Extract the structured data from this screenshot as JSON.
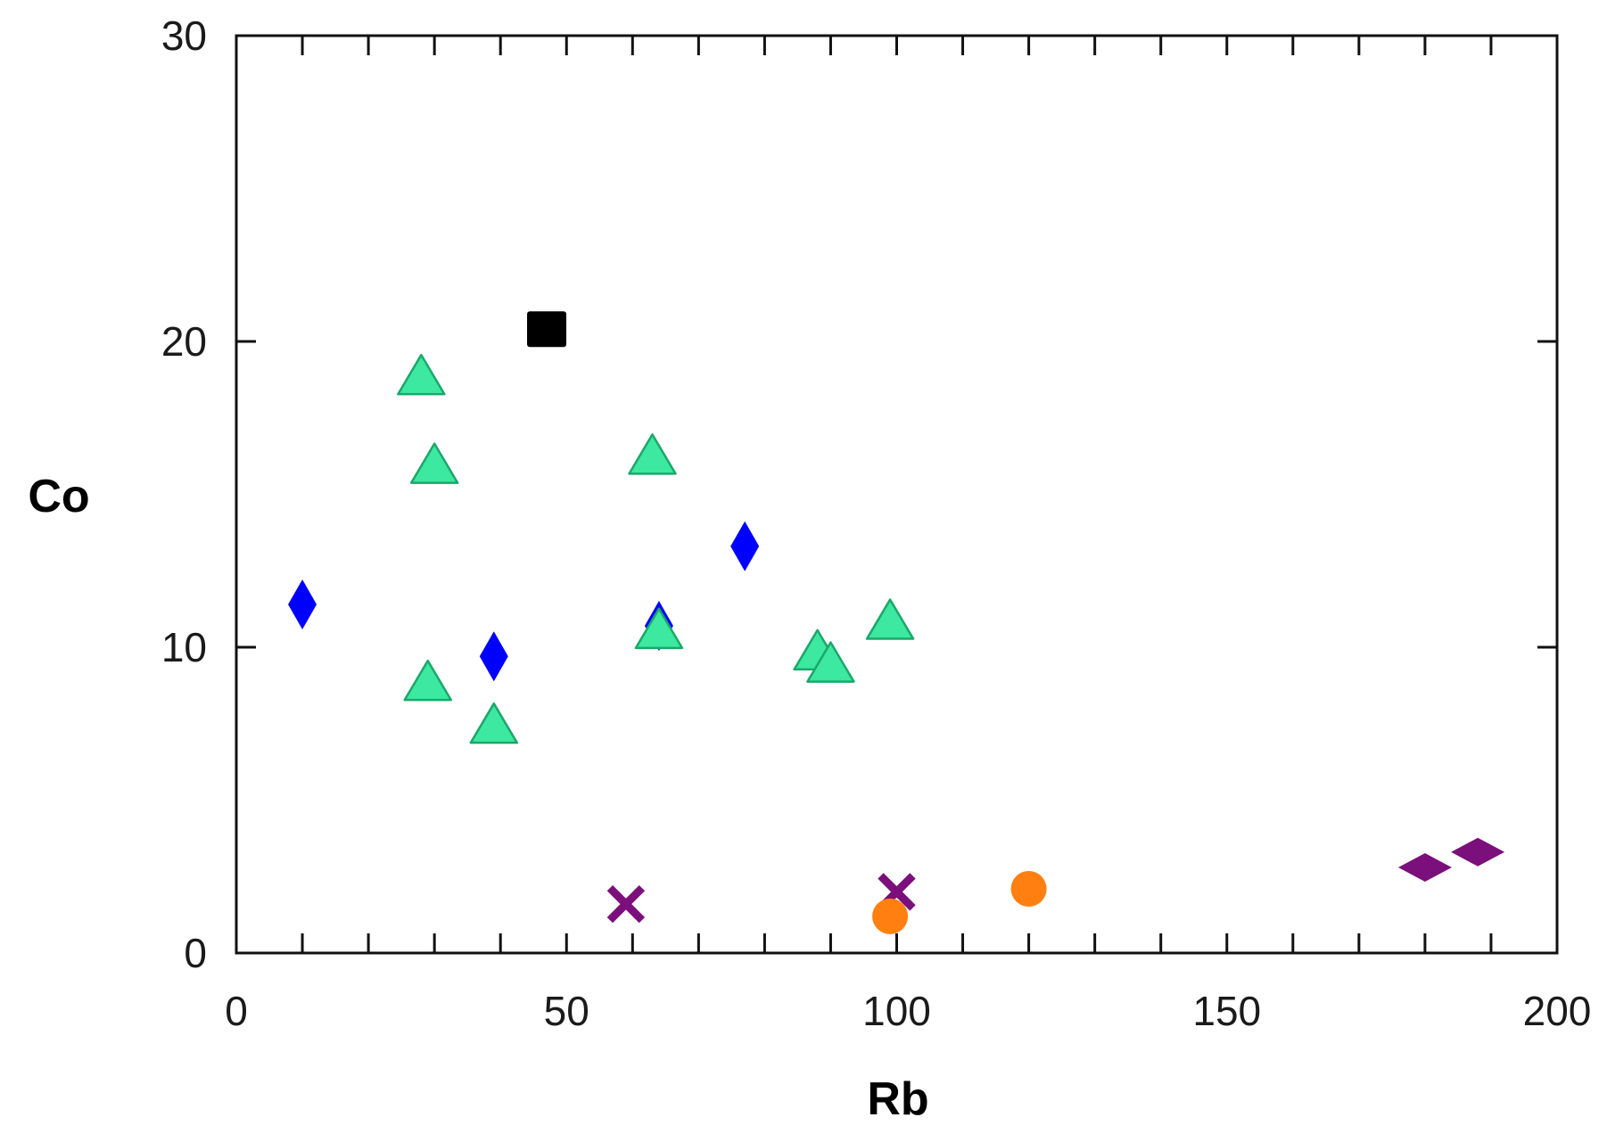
{
  "chart_data": {
    "type": "scatter",
    "title": "",
    "xlabel": "Rb",
    "ylabel": "Co",
    "xlim": [
      0,
      200
    ],
    "ylim": [
      0,
      30
    ],
    "xticks": [
      0,
      50,
      100,
      150,
      200
    ],
    "yticks": [
      0,
      10,
      20,
      30
    ],
    "x_minor_step": 10,
    "y_minor_step": 10,
    "grid": false,
    "legend": "none",
    "series": [
      {
        "marker": "diamond",
        "color": "#0000ff",
        "points": [
          {
            "x": 10,
            "y": 11.4
          },
          {
            "x": 39,
            "y": 9.7
          },
          {
            "x": 64,
            "y": 10.7
          },
          {
            "x": 77,
            "y": 13.3
          }
        ]
      },
      {
        "marker": "triangle",
        "color": "#3de8a0",
        "stroke": "#1aa86a",
        "points": [
          {
            "x": 28,
            "y": 18.8
          },
          {
            "x": 30,
            "y": 15.9
          },
          {
            "x": 29,
            "y": 8.8
          },
          {
            "x": 39,
            "y": 7.4
          },
          {
            "x": 63,
            "y": 16.2
          },
          {
            "x": 64,
            "y": 10.5
          },
          {
            "x": 88,
            "y": 9.8
          },
          {
            "x": 90,
            "y": 9.4
          },
          {
            "x": 99,
            "y": 10.8
          }
        ]
      },
      {
        "marker": "square",
        "color": "#000000",
        "points": [
          {
            "x": 47,
            "y": 20.4
          }
        ]
      },
      {
        "marker": "x",
        "color": "#7b0f7b",
        "points": [
          {
            "x": 59,
            "y": 1.6
          },
          {
            "x": 100,
            "y": 2.0
          }
        ]
      },
      {
        "marker": "circle",
        "color": "#ff8010",
        "points": [
          {
            "x": 99,
            "y": 1.2
          },
          {
            "x": 120,
            "y": 2.1
          }
        ]
      },
      {
        "marker": "flat-diamond",
        "color": "#7b0f7b",
        "points": [
          {
            "x": 180,
            "y": 2.8
          },
          {
            "x": 188,
            "y": 3.3
          }
        ]
      }
    ]
  }
}
